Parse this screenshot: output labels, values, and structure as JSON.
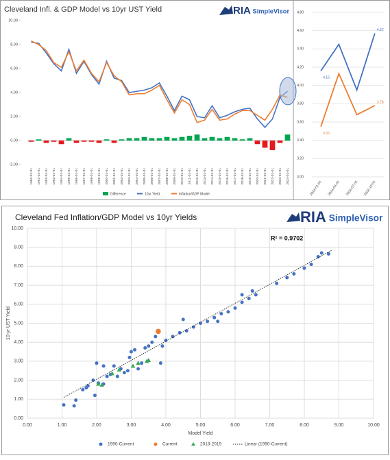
{
  "chart_data": [
    {
      "type": "combo",
      "title": "Cleveland Infl. & GDP Model vs 10yr UST Yield",
      "logo": [
        "RIA",
        "SimpleVisor"
      ],
      "categories": [
        "1990-01-01",
        "1991-01-01",
        "1992-01-01",
        "1993-01-01",
        "1994-01-01",
        "1995-01-01",
        "1996-01-01",
        "1997-01-01",
        "1998-01-01",
        "1999-01-01",
        "2000-01-01",
        "2001-01-01",
        "2002-01-01",
        "2003-01-01",
        "2004-01-01",
        "2005-01-01",
        "2006-01-01",
        "2007-01-01",
        "2008-01-01",
        "2009-01-01",
        "2010-01-01",
        "2011-01-01",
        "2012-01-01",
        "2013-01-01",
        "2014-01-01",
        "2015-01-01",
        "2016-01-01",
        "2017-01-01",
        "2018-01-01",
        "2019-01-01",
        "2020-01-01",
        "2021-01-01",
        "2022-01-01",
        "2023-01-01",
        "2024-01-01"
      ],
      "series": [
        {
          "name": "Difference",
          "kind": "bar",
          "color": "#00a650",
          "negative_color": "#e31a1c",
          "values": [
            -0.1,
            0.1,
            -0.2,
            -0.1,
            -0.3,
            0.2,
            -0.2,
            -0.1,
            -0.1,
            -0.2,
            0.1,
            -0.2,
            0.1,
            0.2,
            0.2,
            0.3,
            0.2,
            0.2,
            0.3,
            0.2,
            0.3,
            0.4,
            0.5,
            0.2,
            0.3,
            0.2,
            0.3,
            0.2,
            0.1,
            0.2,
            -0.3,
            -0.6,
            -0.8,
            -0.2,
            0.5
          ]
        },
        {
          "name": "10yr Yield",
          "kind": "line",
          "color": "#4472c4",
          "values": [
            8.2,
            8.1,
            7.3,
            6.4,
            5.8,
            7.6,
            5.6,
            6.6,
            5.5,
            4.7,
            6.6,
            5.2,
            5.0,
            4.0,
            4.1,
            4.2,
            4.4,
            4.8,
            3.7,
            2.5,
            3.7,
            3.4,
            2.0,
            1.9,
            2.9,
            1.9,
            2.1,
            2.4,
            2.6,
            2.7,
            1.8,
            1.1,
            1.8,
            3.6,
            4.1
          ]
        },
        {
          "name": "Inflation/GDP Model",
          "kind": "line",
          "color": "#ed7d31",
          "values": [
            8.3,
            8.0,
            7.5,
            6.5,
            6.1,
            7.4,
            5.8,
            6.7,
            5.6,
            4.9,
            6.5,
            5.4,
            4.9,
            3.8,
            3.9,
            3.9,
            4.2,
            4.6,
            3.4,
            2.3,
            3.4,
            3.0,
            1.5,
            1.7,
            2.6,
            1.7,
            1.8,
            2.2,
            2.5,
            2.5,
            2.1,
            1.7,
            2.6,
            3.8,
            3.6
          ]
        }
      ],
      "ylim": [
        -2,
        10
      ],
      "yticks": [
        {
          "value": -2,
          "label": "-2.00"
        },
        {
          "value": 0,
          "label": "0.00"
        },
        {
          "value": 2,
          "label": "2.00"
        },
        {
          "value": 4,
          "label": "4.00"
        },
        {
          "value": 6,
          "label": "6.00"
        },
        {
          "value": 8,
          "label": "8.00"
        },
        {
          "value": 10,
          "label": "10.00"
        }
      ],
      "grid": false
    },
    {
      "type": "line",
      "categories": [
        "2024-01-01",
        "2024-04-01",
        "2024-07-01",
        "2024-10-01"
      ],
      "series": [
        {
          "name": "10yr Yield",
          "color": "#4472c4",
          "values": [
            4.16,
            4.45,
            3.95,
            4.57
          ],
          "value_labels": [
            "4.16",
            null,
            null,
            "4.57"
          ]
        },
        {
          "name": "Inflation/GDP Model",
          "color": "#ed7d31",
          "values": [
            3.55,
            4.13,
            3.68,
            3.78
          ],
          "value_labels": [
            "3.55",
            null,
            null,
            "3.78"
          ]
        }
      ],
      "ylim": [
        3,
        4.8
      ],
      "yticks": [
        {
          "value": 3,
          "label": "3.00"
        },
        {
          "value": 3.2,
          "label": "3.20"
        },
        {
          "value": 3.4,
          "label": "3.40"
        },
        {
          "value": 3.6,
          "label": "3.60"
        },
        {
          "value": 3.8,
          "label": "3.80"
        },
        {
          "value": 4,
          "label": "4.00"
        },
        {
          "value": 4.2,
          "label": "4.20"
        },
        {
          "value": 4.4,
          "label": "4.40"
        },
        {
          "value": 4.6,
          "label": "4.60"
        },
        {
          "value": 4.8,
          "label": "4.80"
        }
      ],
      "grid": true
    },
    {
      "type": "scatter",
      "title": "Cleveland Fed Inflation/GDP Model vs 10yr Yields",
      "logo": [
        "RIA",
        "SimpleVisor"
      ],
      "annotation": "R² = 0.9702",
      "x_label": "Model Yield",
      "y_label": "10-yr UST Yield",
      "series": [
        {
          "name": "1990-Current",
          "color": "#4472c4",
          "marker": "circle",
          "x": [
            1.05,
            1.35,
            1.4,
            1.6,
            1.7,
            1.75,
            1.9,
            1.95,
            2.0,
            2.05,
            2.2,
            2.3,
            2.4,
            2.5,
            2.6,
            2.7,
            2.8,
            2.9,
            2.95,
            3.0,
            3.2,
            3.3,
            3.4,
            3.5,
            3.6,
            3.7,
            3.85,
            3.9,
            4.0,
            4.2,
            4.4,
            4.6,
            4.8,
            5.0,
            5.2,
            5.4,
            5.6,
            5.8,
            6.0,
            6.2,
            6.4,
            6.5,
            6.6,
            7.2,
            7.5,
            7.7,
            8.0,
            8.2,
            8.4,
            8.5,
            8.7,
            4.5,
            5.5,
            6.2,
            3.1,
            2.2
          ],
          "values": [
            0.7,
            0.65,
            0.95,
            1.5,
            1.6,
            1.7,
            2.0,
            1.2,
            2.9,
            1.85,
            2.75,
            2.2,
            2.3,
            2.75,
            2.2,
            2.6,
            2.4,
            2.5,
            3.2,
            3.5,
            2.6,
            2.9,
            3.7,
            3.8,
            4.0,
            4.3,
            2.9,
            3.8,
            4.1,
            4.3,
            4.5,
            4.6,
            4.8,
            5.0,
            5.1,
            5.3,
            5.5,
            5.6,
            5.8,
            6.1,
            6.3,
            6.7,
            6.5,
            7.1,
            7.4,
            7.6,
            7.9,
            8.1,
            8.5,
            8.7,
            8.65,
            5.2,
            5.1,
            6.5,
            3.6,
            1.8
          ]
        },
        {
          "name": "Current",
          "color": "#ed7d31",
          "marker": "circle",
          "x": [
            3.78
          ],
          "values": [
            4.57
          ]
        },
        {
          "name": "2018-2019",
          "color": "#3aa757",
          "marker": "triangle",
          "x": [
            2.05,
            2.15,
            2.45,
            2.65,
            3.05,
            3.2,
            3.45,
            3.5
          ],
          "values": [
            1.8,
            1.75,
            2.35,
            2.55,
            2.75,
            2.9,
            3.0,
            3.05
          ]
        },
        {
          "name": "Linear (1990-Current)",
          "color": "#333333",
          "marker": "dotted",
          "x": [
            1.05,
            8.8
          ],
          "values": [
            1.1,
            8.85
          ]
        }
      ],
      "xlim": [
        0,
        10
      ],
      "xticks": [
        {
          "value": 0,
          "label": "0.00"
        },
        {
          "value": 1,
          "label": "1.00"
        },
        {
          "value": 2,
          "label": "2.00"
        },
        {
          "value": 3,
          "label": "3.00"
        },
        {
          "value": 4,
          "label": "4.00"
        },
        {
          "value": 5,
          "label": "5.00"
        },
        {
          "value": 6,
          "label": "6.00"
        },
        {
          "value": 7,
          "label": "7.00"
        },
        {
          "value": 8,
          "label": "8.00"
        },
        {
          "value": 9,
          "label": "9.00"
        },
        {
          "value": 10,
          "label": "10.00"
        }
      ],
      "ylim": [
        0,
        10
      ],
      "yticks": [
        {
          "value": 0,
          "label": "0.00"
        },
        {
          "value": 1,
          "label": "1.00"
        },
        {
          "value": 2,
          "label": "2.00"
        },
        {
          "value": 3,
          "label": "3.00"
        },
        {
          "value": 4,
          "label": "4.00"
        },
        {
          "value": 5,
          "label": "5.00"
        },
        {
          "value": 6,
          "label": "6.00"
        },
        {
          "value": 7,
          "label": "7.00"
        },
        {
          "value": 8,
          "label": "8.00"
        },
        {
          "value": 9,
          "label": "9.00"
        },
        {
          "value": 10,
          "label": "10.00"
        }
      ],
      "grid": true
    }
  ]
}
